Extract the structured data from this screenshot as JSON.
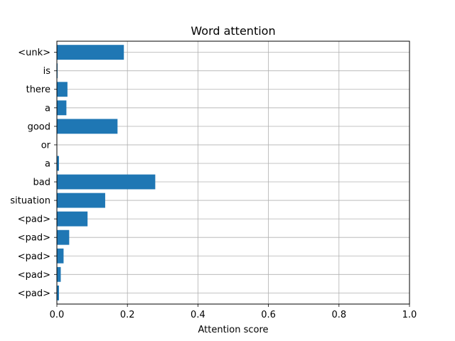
{
  "chart_data": {
    "type": "bar",
    "orientation": "horizontal",
    "title": "Word attention",
    "xlabel": "Attention score",
    "ylabel": "",
    "xlim": [
      0.0,
      1.0
    ],
    "xticks": [
      "0.0",
      "0.2",
      "0.4",
      "0.6",
      "0.8",
      "1.0"
    ],
    "xtick_values": [
      0.0,
      0.2,
      0.4,
      0.6,
      0.8,
      1.0
    ],
    "grid": true,
    "bar_color": "#1f77b4",
    "categories": [
      "<unk>",
      "is",
      "there",
      "a",
      "good",
      "or",
      "a",
      "bad",
      "situation",
      "<pad>",
      "<pad>",
      "<pad>",
      "<pad>",
      "<pad>"
    ],
    "values": [
      0.19,
      0.002,
      0.03,
      0.027,
      0.172,
      0.0005,
      0.006,
      0.279,
      0.137,
      0.087,
      0.035,
      0.019,
      0.011,
      0.006
    ]
  }
}
